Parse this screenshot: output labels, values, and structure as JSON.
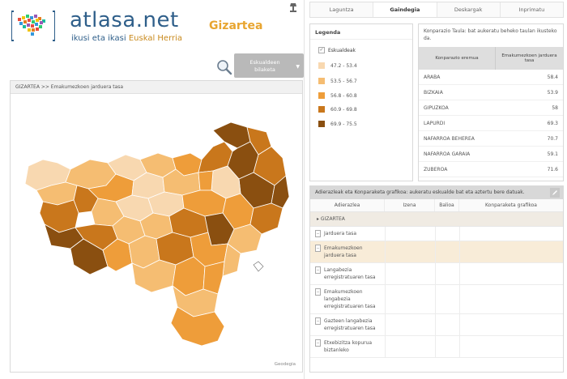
{
  "header": {
    "logo_title": "atlasa.net",
    "logo_subtitle_a": "ikusi eta ikasi ",
    "logo_subtitle_b": "Euskal Herria",
    "section_title": "Gizartea"
  },
  "region_select": {
    "line1": "Eskualdeen",
    "line2": "bilaketa"
  },
  "map": {
    "breadcrumb": "GIZARTEA  >>  Emakumezkoen jarduera tasa",
    "credit": "Geodegia"
  },
  "tabs": [
    {
      "label": "Laguntza"
    },
    {
      "label": "Gaindegia"
    },
    {
      "label": "Deskargak"
    },
    {
      "label": "Inprimatu"
    }
  ],
  "legend": {
    "title": "Legenda",
    "check_label": "Eskualdeak",
    "items": [
      {
        "label": "47.2 - 53.4",
        "color": "#f8d8b0"
      },
      {
        "label": "53.5 - 56.7",
        "color": "#f5bd72"
      },
      {
        "label": "56.8 - 60.8",
        "color": "#ee9d3a"
      },
      {
        "label": "60.9 - 69.8",
        "color": "#c9771c"
      },
      {
        "label": "69.9 - 75.5",
        "color": "#8a4f10"
      }
    ]
  },
  "compare": {
    "description": "Konparazio Taula: bat aukeratu beheko taulan ikusteko da.",
    "col_name": "Konparazio eremua",
    "col_value": "Emakumezkoen jarduera tasa",
    "rows": [
      {
        "name": "ARABA",
        "value": "58.4"
      },
      {
        "name": "BIZKAIA",
        "value": "53.9"
      },
      {
        "name": "GIPUZKOA",
        "value": "58"
      },
      {
        "name": "LAPURDI",
        "value": "69.3"
      },
      {
        "name": "NAFARROA BEHEREA",
        "value": "70.7"
      },
      {
        "name": "NAFARROA GARAIA",
        "value": "59.1"
      },
      {
        "name": "ZUBEROA",
        "value": "71.6"
      }
    ]
  },
  "indicators": {
    "title": "Adierazleak eta Konparaketa grafikoa: aukeratu eskualde bat eta aztertu bere datuak.",
    "col_indicator": "Adierazlea",
    "col_name": "Izena",
    "col_value": "Balioa",
    "col_chart": "Konparaketa grafikoa",
    "group": "GIZARTEA",
    "rows": [
      {
        "label": "Jarduera tasa",
        "selected": false
      },
      {
        "label": "Emakumezkoen jarduera tasa",
        "selected": true
      },
      {
        "label": "Langabezia erregistratuaren tasa",
        "selected": false
      },
      {
        "label": "Emakumezkoen langabezia erregistratuaren tasa",
        "selected": false
      },
      {
        "label": "Gazteen langabezia erregistratuaren tasa",
        "selected": false
      },
      {
        "label": "Etxebizitza kopurua biztanleko",
        "selected": false
      }
    ]
  }
}
